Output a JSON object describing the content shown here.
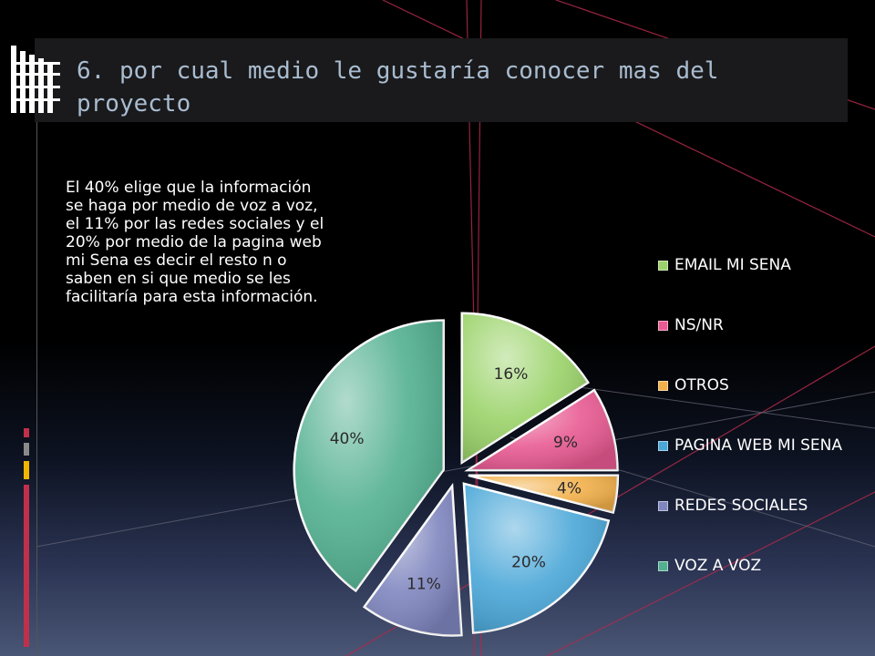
{
  "slide": {
    "title": "6. por cual medio le gustaría conocer mas del proyecto",
    "summary": "El 40% elige que la información se haga por medio de voz a voz, el 11% por las redes sociales y el 20% por medio de la pagina web mi Sena es decir el resto n o saben en si que medio se les facilitaría para esta información."
  },
  "chart_data": {
    "type": "pie",
    "title": "",
    "legend_position": "right",
    "categories": [
      "EMAIL MI SENA",
      "NS/NR",
      "OTROS",
      "PAGINA WEB MI SENA",
      "REDES SOCIALES",
      "VOZ A VOZ"
    ],
    "values": [
      16,
      9,
      4,
      20,
      11,
      40
    ],
    "labels": [
      "16%",
      "9%",
      "4%",
      "20%",
      "11%",
      "40%"
    ],
    "colors": [
      "#9bd36a",
      "#e85a92",
      "#f2b04a",
      "#4aa7d8",
      "#7f86bf",
      "#52b090"
    ],
    "exploded": true,
    "start_angle_degrees": 0
  },
  "theme": {
    "accent_red": "#c0304a",
    "accent_yellow": "#f2b400",
    "accent_gray": "#8a8a8a"
  }
}
